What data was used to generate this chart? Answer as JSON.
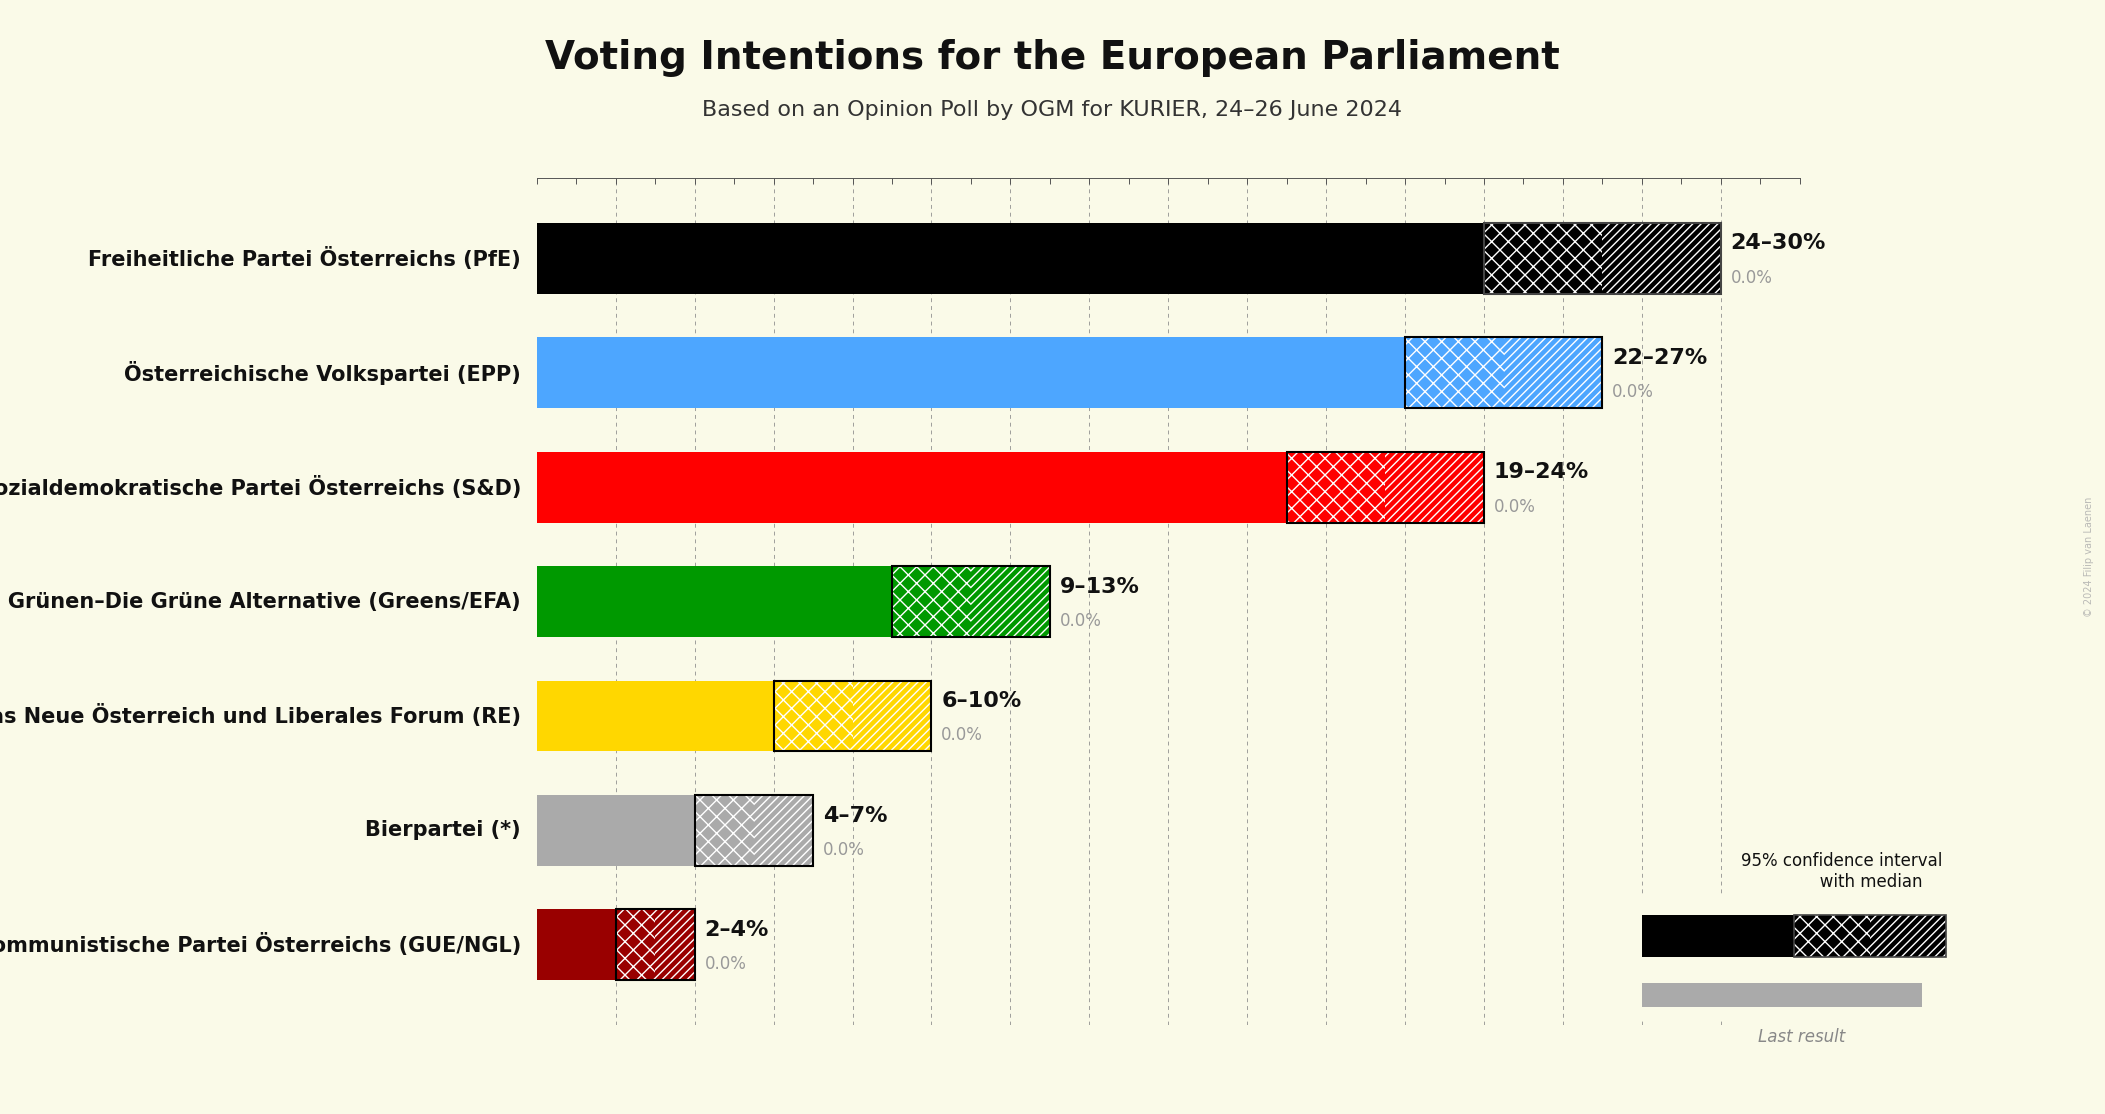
{
  "title": "Voting Intentions for the European Parliament",
  "subtitle": "Based on an Opinion Poll by OGM for KURIER, 24–26 June 2024",
  "background_color": "#FAFAE8",
  "parties": [
    {
      "name": "Freiheitliche Partei Österreichs (PfE)",
      "color": "#000000",
      "median": 27.0,
      "low": 24.0,
      "high": 30.0,
      "last_result": 0.0,
      "label": "24–30%",
      "label2": "0.0%"
    },
    {
      "name": "Österreichische Volkspartei (EPP)",
      "color": "#4da6ff",
      "median": 24.5,
      "low": 22.0,
      "high": 27.0,
      "last_result": 0.0,
      "label": "22–27%",
      "label2": "0.0%"
    },
    {
      "name": "Sozialdemokratische Partei Österreichs (S&D)",
      "color": "#FF0000",
      "median": 21.5,
      "low": 19.0,
      "high": 24.0,
      "last_result": 0.0,
      "label": "19–24%",
      "label2": "0.0%"
    },
    {
      "name": "Die Grünen–Die Grüne Alternative (Greens/EFA)",
      "color": "#009900",
      "median": 11.0,
      "low": 9.0,
      "high": 13.0,
      "last_result": 0.0,
      "label": "9–13%",
      "label2": "0.0%"
    },
    {
      "name": "NEOS–Das Neue Österreich und Liberales Forum (RE)",
      "color": "#FFD700",
      "median": 8.0,
      "low": 6.0,
      "high": 10.0,
      "last_result": 0.0,
      "label": "6–10%",
      "label2": "0.0%"
    },
    {
      "name": "Bierpartei (*)",
      "color": "#AAAAAA",
      "median": 5.5,
      "low": 4.0,
      "high": 7.0,
      "last_result": 0.0,
      "label": "4–7%",
      "label2": "0.0%"
    },
    {
      "name": "Kommunistische Partei Österreichs (GUE/NGL)",
      "color": "#990000",
      "median": 3.0,
      "low": 2.0,
      "high": 4.0,
      "last_result": 0.0,
      "label": "2–4%",
      "label2": "0.0%"
    }
  ],
  "xlim": [
    0,
    32
  ],
  "bar_height": 0.62,
  "title_fontsize": 28,
  "subtitle_fontsize": 16,
  "label_fontsize": 18,
  "tick_fontsize": 13,
  "watermark": "© 2024 Filip van Laenen"
}
